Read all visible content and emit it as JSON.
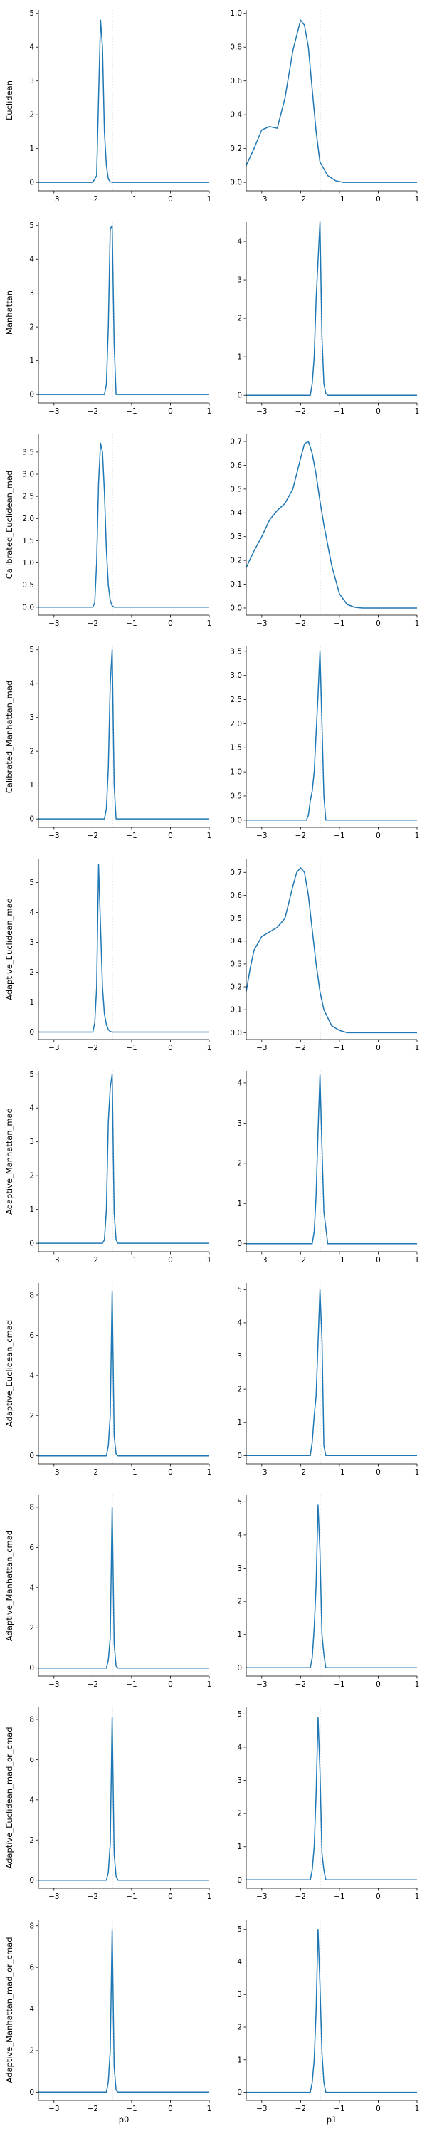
{
  "figure": {
    "columns": [
      "p0",
      "p1"
    ],
    "rows": [
      "Euclidean",
      "Manhattan",
      "Calibrated_Euclidean_mad",
      "Calibrated_Manhattan_mad",
      "Adaptive_Euclidean_mad",
      "Adaptive_Manhattan_mad",
      "Adaptive_Euclidean_cmad",
      "Adaptive_Manhattan_cmad",
      "Adaptive_Euclidean_mad_or_cmad",
      "Adaptive_Manhattan_mad_or_cmad"
    ],
    "line_color": "#1f77b4",
    "reference_line_color": "#555555"
  },
  "chart_data": [
    {
      "type": "line",
      "row": "Euclidean",
      "column": "p0",
      "xlim": [
        -3.4,
        1
      ],
      "ylim": [
        -0.25,
        5.1
      ],
      "yticks": [
        0,
        1,
        2,
        3,
        4,
        5
      ],
      "xticks": [
        -3,
        -2,
        -1,
        0,
        1
      ],
      "reference_x": -1.5,
      "x": [
        -3.4,
        -2.0,
        -1.9,
        -1.85,
        -1.8,
        -1.75,
        -1.7,
        -1.65,
        -1.6,
        -1.55,
        -1.5,
        1.0
      ],
      "y": [
        0,
        0,
        0.2,
        2.5,
        4.8,
        4.0,
        1.5,
        0.5,
        0.1,
        0.02,
        0,
        0
      ]
    },
    {
      "type": "line",
      "row": "Euclidean",
      "column": "p1",
      "xlim": [
        -3.4,
        1
      ],
      "ylim": [
        -0.05,
        1.02
      ],
      "yticks": [
        0.0,
        0.2,
        0.4,
        0.6,
        0.8,
        1.0
      ],
      "xticks": [
        -3,
        -2,
        -1,
        0,
        1
      ],
      "reference_x": -1.5,
      "x": [
        -3.4,
        -3.2,
        -3.0,
        -2.8,
        -2.6,
        -2.4,
        -2.2,
        -2.0,
        -1.9,
        -1.8,
        -1.7,
        -1.6,
        -1.5,
        -1.3,
        -1.1,
        -0.9,
        -0.7,
        -0.5,
        1.0
      ],
      "y": [
        0.1,
        0.2,
        0.31,
        0.33,
        0.32,
        0.5,
        0.78,
        0.96,
        0.93,
        0.8,
        0.55,
        0.3,
        0.12,
        0.04,
        0.01,
        0,
        0,
        0,
        0
      ]
    },
    {
      "type": "line",
      "row": "Manhattan",
      "column": "p0",
      "xlim": [
        -3.4,
        1
      ],
      "ylim": [
        -0.25,
        5.1
      ],
      "yticks": [
        0,
        1,
        2,
        3,
        4,
        5
      ],
      "xticks": [
        -3,
        -2,
        -1,
        0,
        1
      ],
      "reference_x": -1.5,
      "x": [
        -3.4,
        -1.7,
        -1.65,
        -1.6,
        -1.55,
        -1.5,
        -1.45,
        -1.4,
        1.0
      ],
      "y": [
        0,
        0,
        0.3,
        2.0,
        4.9,
        5.0,
        1.5,
        0,
        0
      ]
    },
    {
      "type": "line",
      "row": "Manhattan",
      "column": "p1",
      "xlim": [
        -3.4,
        1
      ],
      "ylim": [
        -0.2,
        4.5
      ],
      "yticks": [
        0,
        1,
        2,
        3,
        4
      ],
      "xticks": [
        -3,
        -2,
        -1,
        0,
        1
      ],
      "reference_x": -1.5,
      "x": [
        -3.4,
        -1.75,
        -1.7,
        -1.65,
        -1.6,
        -1.55,
        -1.5,
        -1.45,
        -1.4,
        -1.35,
        -1.3,
        1.0
      ],
      "y": [
        0,
        0,
        0.3,
        1.0,
        2.5,
        3.5,
        4.5,
        1.5,
        0.3,
        0.05,
        0,
        0
      ]
    },
    {
      "type": "line",
      "row": "Calibrated_Euclidean_mad",
      "column": "p0",
      "xlim": [
        -3.4,
        1
      ],
      "ylim": [
        -0.18,
        3.9
      ],
      "yticks": [
        0.0,
        0.5,
        1.0,
        1.5,
        2.0,
        2.5,
        3.0,
        3.5
      ],
      "xticks": [
        -3,
        -2,
        -1,
        0,
        1
      ],
      "reference_x": -1.5,
      "x": [
        -3.4,
        -2.0,
        -1.95,
        -1.9,
        -1.85,
        -1.8,
        -1.75,
        -1.7,
        -1.65,
        -1.6,
        -1.55,
        -1.5,
        -1.45,
        1.0
      ],
      "y": [
        0,
        0,
        0.1,
        1.0,
        2.8,
        3.7,
        3.5,
        2.6,
        1.3,
        0.5,
        0.15,
        0.03,
        0,
        0
      ]
    },
    {
      "type": "line",
      "row": "Calibrated_Euclidean_mad",
      "column": "p1",
      "xlim": [
        -3.4,
        1
      ],
      "ylim": [
        -0.03,
        0.73
      ],
      "yticks": [
        0.0,
        0.1,
        0.2,
        0.3,
        0.4,
        0.5,
        0.6,
        0.7
      ],
      "xticks": [
        -3,
        -2,
        -1,
        0,
        1
      ],
      "reference_x": -1.5,
      "x": [
        -3.4,
        -3.2,
        -3.0,
        -2.8,
        -2.6,
        -2.4,
        -2.2,
        -2.0,
        -1.9,
        -1.8,
        -1.7,
        -1.6,
        -1.5,
        -1.4,
        -1.2,
        -1.0,
        -0.8,
        -0.6,
        -0.4,
        1.0
      ],
      "y": [
        0.17,
        0.24,
        0.3,
        0.37,
        0.41,
        0.44,
        0.5,
        0.63,
        0.69,
        0.7,
        0.65,
        0.56,
        0.45,
        0.35,
        0.18,
        0.06,
        0.015,
        0.003,
        0,
        0
      ]
    },
    {
      "type": "line",
      "row": "Calibrated_Manhattan_mad",
      "column": "p0",
      "xlim": [
        -3.4,
        1
      ],
      "ylim": [
        -0.25,
        5.1
      ],
      "yticks": [
        0,
        1,
        2,
        3,
        4,
        5
      ],
      "xticks": [
        -3,
        -2,
        -1,
        0,
        1
      ],
      "reference_x": -1.5,
      "x": [
        -3.4,
        -1.7,
        -1.65,
        -1.6,
        -1.55,
        -1.5,
        -1.45,
        -1.4,
        1.0
      ],
      "y": [
        0,
        0,
        0.3,
        1.5,
        4.0,
        5.0,
        1.0,
        0,
        0
      ]
    },
    {
      "type": "line",
      "row": "Calibrated_Manhattan_mad",
      "column": "p1",
      "xlim": [
        -3.4,
        1
      ],
      "ylim": [
        -0.15,
        3.6
      ],
      "yticks": [
        0.0,
        0.5,
        1.0,
        1.5,
        2.0,
        2.5,
        3.0,
        3.5
      ],
      "xticks": [
        -3,
        -2,
        -1,
        0,
        1
      ],
      "reference_x": -1.5,
      "x": [
        -3.4,
        -1.85,
        -1.8,
        -1.75,
        -1.7,
        -1.65,
        -1.6,
        -1.55,
        -1.5,
        -1.45,
        -1.4,
        -1.35,
        1.0
      ],
      "y": [
        0,
        0,
        0.1,
        0.4,
        0.6,
        1.0,
        1.8,
        2.6,
        3.5,
        2.0,
        0.5,
        0,
        0
      ]
    },
    {
      "type": "line",
      "row": "Adaptive_Euclidean_mad",
      "column": "p0",
      "xlim": [
        -3.4,
        1
      ],
      "ylim": [
        -0.25,
        5.8
      ],
      "yticks": [
        0,
        1,
        2,
        3,
        4,
        5
      ],
      "xticks": [
        -3,
        -2,
        -1,
        0,
        1
      ],
      "reference_x": -1.5,
      "x": [
        -3.4,
        -2.0,
        -1.95,
        -1.9,
        -1.85,
        -1.8,
        -1.75,
        -1.7,
        -1.65,
        -1.6,
        -1.55,
        -1.5,
        1.0
      ],
      "y": [
        0,
        0,
        0.3,
        1.5,
        5.6,
        3.5,
        1.5,
        0.6,
        0.25,
        0.08,
        0.02,
        0,
        0
      ]
    },
    {
      "type": "line",
      "row": "Adaptive_Euclidean_mad",
      "column": "p1",
      "xlim": [
        -3.4,
        1
      ],
      "ylim": [
        -0.03,
        0.76
      ],
      "yticks": [
        0.0,
        0.1,
        0.2,
        0.3,
        0.4,
        0.5,
        0.6,
        0.7
      ],
      "xticks": [
        -3,
        -2,
        -1,
        0,
        1
      ],
      "reference_x": -1.5,
      "x": [
        -3.4,
        -3.3,
        -3.2,
        -3.0,
        -2.8,
        -2.6,
        -2.4,
        -2.2,
        -2.1,
        -2.0,
        -1.9,
        -1.8,
        -1.7,
        -1.6,
        -1.5,
        -1.4,
        -1.2,
        -1.0,
        -0.8,
        -0.6,
        1.0
      ],
      "y": [
        0.18,
        0.28,
        0.36,
        0.42,
        0.44,
        0.46,
        0.5,
        0.64,
        0.7,
        0.72,
        0.7,
        0.6,
        0.45,
        0.3,
        0.18,
        0.1,
        0.03,
        0.01,
        0,
        0,
        0
      ]
    },
    {
      "type": "line",
      "row": "Adaptive_Manhattan_mad",
      "column": "p0",
      "xlim": [
        -3.4,
        1
      ],
      "ylim": [
        -0.25,
        5.1
      ],
      "yticks": [
        0,
        1,
        2,
        3,
        4,
        5
      ],
      "xticks": [
        -3,
        -2,
        -1,
        0,
        1
      ],
      "reference_x": -1.5,
      "x": [
        -3.4,
        -1.75,
        -1.7,
        -1.65,
        -1.6,
        -1.55,
        -1.5,
        -1.45,
        -1.4,
        -1.35,
        1.0
      ],
      "y": [
        0,
        0,
        0.1,
        1.0,
        3.6,
        4.6,
        5.0,
        0.9,
        0.1,
        0,
        0
      ]
    },
    {
      "type": "line",
      "row": "Adaptive_Manhattan_mad",
      "column": "p1",
      "xlim": [
        -3.4,
        1
      ],
      "ylim": [
        -0.2,
        4.3
      ],
      "yticks": [
        0,
        1,
        2,
        3,
        4
      ],
      "xticks": [
        -3,
        -2,
        -1,
        0,
        1
      ],
      "reference_x": -1.5,
      "x": [
        -3.4,
        -1.7,
        -1.65,
        -1.6,
        -1.55,
        -1.5,
        -1.45,
        -1.4,
        -1.35,
        -1.3,
        1.0
      ],
      "y": [
        0,
        0,
        0.3,
        1.2,
        2.8,
        4.2,
        2.4,
        0.8,
        0.4,
        0,
        0
      ]
    },
    {
      "type": "line",
      "row": "Adaptive_Euclidean_cmad",
      "column": "p0",
      "xlim": [
        -3.4,
        1
      ],
      "ylim": [
        -0.4,
        8.6
      ],
      "yticks": [
        0,
        2,
        4,
        6,
        8
      ],
      "xticks": [
        -3,
        -2,
        -1,
        0,
        1
      ],
      "reference_x": -1.5,
      "x": [
        -3.4,
        -1.65,
        -1.6,
        -1.55,
        -1.5,
        -1.45,
        -1.4,
        -1.35,
        1.0
      ],
      "y": [
        0,
        0,
        0.5,
        2.0,
        8.2,
        1.0,
        0.1,
        0,
        0
      ]
    },
    {
      "type": "line",
      "row": "Adaptive_Euclidean_cmad",
      "column": "p1",
      "xlim": [
        -3.4,
        1
      ],
      "ylim": [
        -0.25,
        5.2
      ],
      "yticks": [
        0,
        1,
        2,
        3,
        4,
        5
      ],
      "xticks": [
        -3,
        -2,
        -1,
        0,
        1
      ],
      "reference_x": -1.5,
      "x": [
        -3.4,
        -1.75,
        -1.7,
        -1.65,
        -1.6,
        -1.55,
        -1.5,
        -1.45,
        -1.4,
        -1.35,
        1.0
      ],
      "y": [
        0,
        0,
        0.4,
        1.2,
        1.8,
        3.4,
        5.0,
        3.5,
        0.3,
        0,
        0
      ]
    },
    {
      "type": "line",
      "row": "Adaptive_Manhattan_cmad",
      "column": "p0",
      "xlim": [
        -3.4,
        1
      ],
      "ylim": [
        -0.4,
        8.6
      ],
      "yticks": [
        0,
        2,
        4,
        6,
        8
      ],
      "xticks": [
        -3,
        -2,
        -1,
        0,
        1
      ],
      "reference_x": -1.5,
      "x": [
        -3.4,
        -1.65,
        -1.6,
        -1.55,
        -1.5,
        -1.45,
        -1.4,
        -1.35,
        1.0
      ],
      "y": [
        0,
        0,
        0.4,
        1.5,
        8.0,
        1.2,
        0.1,
        0,
        0
      ]
    },
    {
      "type": "line",
      "row": "Adaptive_Manhattan_cmad",
      "column": "p1",
      "xlim": [
        -3.4,
        1
      ],
      "ylim": [
        -0.25,
        5.2
      ],
      "yticks": [
        0,
        1,
        2,
        3,
        4,
        5
      ],
      "xticks": [
        -3,
        -2,
        -1,
        0,
        1
      ],
      "reference_x": -1.5,
      "x": [
        -3.4,
        -1.75,
        -1.7,
        -1.65,
        -1.6,
        -1.55,
        -1.5,
        -1.45,
        -1.4,
        -1.35,
        1.0
      ],
      "y": [
        0,
        0,
        0.3,
        1.2,
        2.5,
        4.9,
        3.5,
        1.0,
        0.4,
        0,
        0
      ]
    },
    {
      "type": "line",
      "row": "Adaptive_Euclidean_mad_or_cmad",
      "column": "p0",
      "xlim": [
        -3.4,
        1
      ],
      "ylim": [
        -0.4,
        8.6
      ],
      "yticks": [
        0,
        2,
        4,
        6,
        8
      ],
      "xticks": [
        -3,
        -2,
        -1,
        0,
        1
      ],
      "reference_x": -1.5,
      "x": [
        -3.4,
        -1.65,
        -1.6,
        -1.55,
        -1.5,
        -1.45,
        -1.4,
        -1.35,
        1.0
      ],
      "y": [
        0,
        0,
        0.4,
        1.8,
        8.1,
        1.3,
        0.2,
        0,
        0
      ]
    },
    {
      "type": "line",
      "row": "Adaptive_Euclidean_mad_or_cmad",
      "column": "p1",
      "xlim": [
        -3.4,
        1
      ],
      "ylim": [
        -0.25,
        5.2
      ],
      "yticks": [
        0,
        1,
        2,
        3,
        4,
        5
      ],
      "xticks": [
        -3,
        -2,
        -1,
        0,
        1
      ],
      "reference_x": -1.5,
      "x": [
        -3.4,
        -1.75,
        -1.7,
        -1.65,
        -1.6,
        -1.55,
        -1.5,
        -1.45,
        -1.4,
        -1.35,
        1.0
      ],
      "y": [
        0,
        0,
        0.3,
        1.0,
        2.6,
        4.9,
        3.3,
        0.8,
        0.3,
        0,
        0
      ]
    },
    {
      "type": "line",
      "row": "Adaptive_Manhattan_mad_or_cmad",
      "column": "p0",
      "xlim": [
        -3.4,
        1
      ],
      "ylim": [
        -0.4,
        8.3
      ],
      "yticks": [
        0,
        2,
        4,
        6,
        8
      ],
      "xticks": [
        -3,
        -2,
        -1,
        0,
        1
      ],
      "reference_x": -1.5,
      "x": [
        -3.4,
        -1.65,
        -1.6,
        -1.55,
        -1.5,
        -1.45,
        -1.4,
        -1.35,
        1.0
      ],
      "y": [
        0,
        0,
        0.5,
        2.0,
        7.8,
        1.2,
        0.1,
        0,
        0
      ]
    },
    {
      "type": "line",
      "row": "Adaptive_Manhattan_mad_or_cmad",
      "column": "p1",
      "xlim": [
        -3.4,
        1
      ],
      "ylim": [
        -0.25,
        5.3
      ],
      "yticks": [
        0,
        1,
        2,
        3,
        4,
        5
      ],
      "xticks": [
        -3,
        -2,
        -1,
        0,
        1
      ],
      "reference_x": -1.5,
      "x": [
        -3.4,
        -1.75,
        -1.7,
        -1.65,
        -1.6,
        -1.55,
        -1.5,
        -1.45,
        -1.4,
        -1.35,
        1.0
      ],
      "y": [
        0,
        0,
        0.3,
        1.0,
        2.5,
        5.0,
        3.3,
        1.2,
        0.3,
        0,
        0
      ]
    }
  ]
}
